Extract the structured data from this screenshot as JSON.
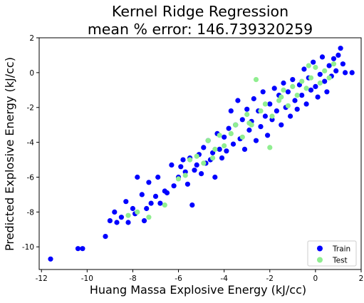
{
  "chart_data": {
    "type": "scatter",
    "title_lines": [
      "Kernel Ridge Regression",
      "mean % error: 146.739320259"
    ],
    "xlabel": "Huang Massa Explosive Energy (kJ/cc)",
    "ylabel": "Predicted Explosive Energy (kJ/cc)",
    "xlim": [
      -12.1,
      2.0
    ],
    "ylim": [
      -11.3,
      2.0
    ],
    "xticks": [
      -12,
      -10,
      -8,
      -6,
      -4,
      -2,
      0,
      2
    ],
    "yticks": [
      -10,
      -8,
      -6,
      -4,
      -2,
      0,
      2
    ],
    "legend_position": "lower right",
    "grid": false,
    "series": [
      {
        "name": "Train",
        "color": "#0000ff",
        "points": [
          [
            -11.6,
            -10.7
          ],
          [
            -10.4,
            -10.1
          ],
          [
            -10.2,
            -10.1
          ],
          [
            -9.2,
            -9.4
          ],
          [
            -9.0,
            -8.5
          ],
          [
            -8.8,
            -8.0
          ],
          [
            -8.7,
            -8.6
          ],
          [
            -8.5,
            -8.3
          ],
          [
            -8.3,
            -7.4
          ],
          [
            -8.2,
            -8.6
          ],
          [
            -8.0,
            -7.8
          ],
          [
            -7.9,
            -8.1
          ],
          [
            -7.8,
            -6.0
          ],
          [
            -7.6,
            -7.0
          ],
          [
            -7.5,
            -8.5
          ],
          [
            -7.4,
            -7.8
          ],
          [
            -7.3,
            -6.3
          ],
          [
            -7.2,
            -7.5
          ],
          [
            -7.0,
            -7.1
          ],
          [
            -6.9,
            -6.0
          ],
          [
            -6.8,
            -7.5
          ],
          [
            -6.6,
            -6.8
          ],
          [
            -6.5,
            -6.9
          ],
          [
            -6.3,
            -5.3
          ],
          [
            -6.2,
            -6.5
          ],
          [
            -6.0,
            -6.0
          ],
          [
            -5.9,
            -5.4
          ],
          [
            -5.8,
            -5.0
          ],
          [
            -5.7,
            -5.7
          ],
          [
            -5.6,
            -6.4
          ],
          [
            -5.5,
            -4.9
          ],
          [
            -5.4,
            -7.6
          ],
          [
            -5.3,
            -5.6
          ],
          [
            -5.2,
            -5.3
          ],
          [
            -5.1,
            -4.7
          ],
          [
            -5.0,
            -5.8
          ],
          [
            -4.9,
            -4.3
          ],
          [
            -4.8,
            -5.2
          ],
          [
            -4.7,
            -3.9
          ],
          [
            -4.6,
            -5.0
          ],
          [
            -4.5,
            -4.6
          ],
          [
            -4.4,
            -6.0
          ],
          [
            -4.3,
            -3.5
          ],
          [
            -4.2,
            -4.4
          ],
          [
            -4.1,
            -4.9
          ],
          [
            -4.0,
            -3.7
          ],
          [
            -3.9,
            -4.5
          ],
          [
            -3.8,
            -3.2
          ],
          [
            -3.7,
            -2.2
          ],
          [
            -3.6,
            -4.1
          ],
          [
            -3.5,
            -3.0
          ],
          [
            -3.4,
            -1.6
          ],
          [
            -3.3,
            -3.8
          ],
          [
            -3.2,
            -2.7
          ],
          [
            -3.1,
            -4.4
          ],
          [
            -3.0,
            -2.1
          ],
          [
            -2.9,
            -3.3
          ],
          [
            -2.8,
            -2.8
          ],
          [
            -2.7,
            -1.5
          ],
          [
            -2.6,
            -3.9
          ],
          [
            -2.5,
            -2.2
          ],
          [
            -2.4,
            -3.1
          ],
          [
            -2.3,
            -1.1
          ],
          [
            -2.2,
            -2.5
          ],
          [
            -2.1,
            -3.6
          ],
          [
            -2.0,
            -1.8
          ],
          [
            -1.9,
            -2.7
          ],
          [
            -1.8,
            -0.9
          ],
          [
            -1.7,
            -2.2
          ],
          [
            -1.6,
            -1.3
          ],
          [
            -1.5,
            -3.0
          ],
          [
            -1.4,
            -0.6
          ],
          [
            -1.3,
            -2.0
          ],
          [
            -1.2,
            -1.1
          ],
          [
            -1.1,
            -2.5
          ],
          [
            -1.0,
            -0.4
          ],
          [
            -0.9,
            -1.6
          ],
          [
            -0.8,
            -2.1
          ],
          [
            -0.7,
            -0.7
          ],
          [
            -0.6,
            -1.3
          ],
          [
            -0.5,
            0.2
          ],
          [
            -0.4,
            -1.8
          ],
          [
            -0.3,
            -0.3
          ],
          [
            -0.2,
            -1.0
          ],
          [
            -0.1,
            0.6
          ],
          [
            0.0,
            -0.8
          ],
          [
            0.1,
            -1.4
          ],
          [
            0.2,
            -0.1
          ],
          [
            0.3,
            0.9
          ],
          [
            0.4,
            -0.5
          ],
          [
            0.5,
            -1.1
          ],
          [
            0.6,
            0.4
          ],
          [
            0.7,
            -0.2
          ],
          [
            0.8,
            0.8
          ],
          [
            0.9,
            0.1
          ],
          [
            1.0,
            1.0
          ],
          [
            1.1,
            1.4
          ],
          [
            1.2,
            0.5
          ],
          [
            1.3,
            0.0
          ],
          [
            1.6,
            0.0
          ]
        ]
      },
      {
        "name": "Test",
        "color": "#90ee90",
        "points": [
          [
            -8.2,
            -8.2
          ],
          [
            -7.8,
            -8.0
          ],
          [
            -7.3,
            -8.3
          ],
          [
            -6.6,
            -7.6
          ],
          [
            -6.0,
            -6.1
          ],
          [
            -5.7,
            -5.9
          ],
          [
            -5.2,
            -4.8
          ],
          [
            -4.9,
            -5.2
          ],
          [
            -4.7,
            -3.9
          ],
          [
            -4.5,
            -4.9
          ],
          [
            -4.2,
            -3.6
          ],
          [
            -4.0,
            -4.2
          ],
          [
            -3.7,
            -3.5
          ],
          [
            -3.5,
            -3.0
          ],
          [
            -3.2,
            -3.7
          ],
          [
            -3.0,
            -2.4
          ],
          [
            -2.8,
            -3.0
          ],
          [
            -2.6,
            -0.4
          ],
          [
            -2.4,
            -2.2
          ],
          [
            -2.2,
            -1.8
          ],
          [
            -2.0,
            -4.3
          ],
          [
            -1.9,
            -2.5
          ],
          [
            -1.6,
            -1.6
          ],
          [
            -1.4,
            -1.0
          ],
          [
            -1.2,
            -1.9
          ],
          [
            -1.0,
            -0.8
          ],
          [
            -0.8,
            -1.3
          ],
          [
            -0.6,
            -0.5
          ],
          [
            -0.4,
            -0.9
          ],
          [
            -0.2,
            -0.3
          ],
          [
            0.0,
            0.3
          ],
          [
            0.2,
            -0.6
          ],
          [
            0.4,
            0.1
          ],
          [
            0.6,
            -0.3
          ],
          [
            0.8,
            0.5
          ],
          [
            -0.3,
            0.4
          ],
          [
            -1.5,
            -1.4
          ],
          [
            -2.9,
            -2.9
          ],
          [
            -4.4,
            -4.4
          ],
          [
            -5.5,
            -5.0
          ]
        ]
      }
    ]
  }
}
